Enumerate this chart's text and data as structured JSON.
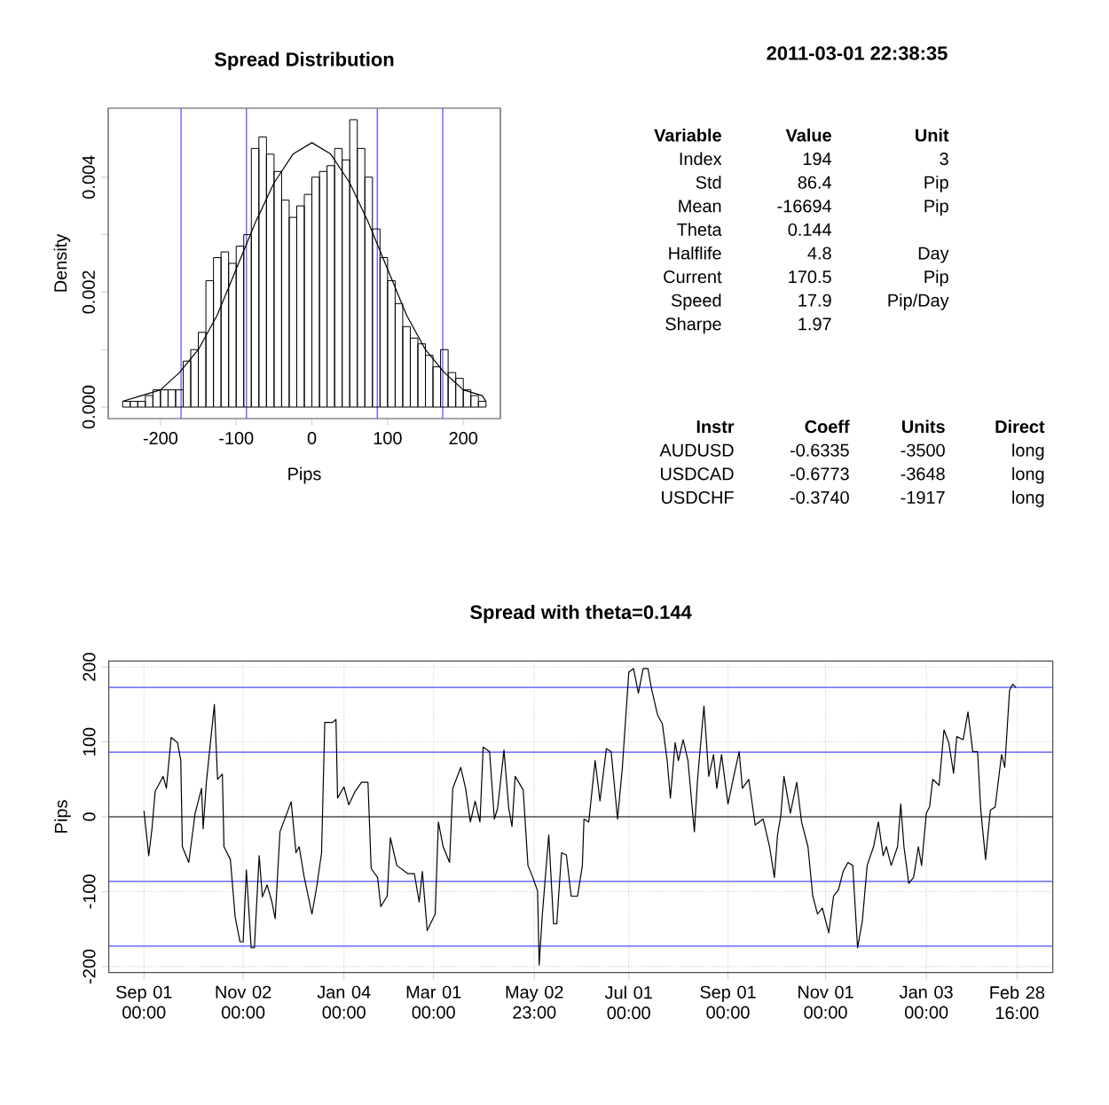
{
  "chart_data": [
    {
      "type": "histogram",
      "title": "Spread Distribution",
      "xlabel": "Pips",
      "ylabel": "Density",
      "series": [
        {
          "type": "histogram",
          "color": "#000000",
          "bins": [
            -250,
            -240,
            -230,
            -220,
            -210,
            -200,
            -190,
            -180,
            -170,
            -160,
            -150,
            -140,
            -130,
            -120,
            -110,
            -100,
            -90,
            -80,
            -70,
            -60,
            -50,
            -40,
            -30,
            -20,
            -10,
            0,
            10,
            20,
            30,
            40,
            50,
            60,
            70,
            80,
            90,
            100,
            110,
            120,
            130,
            140,
            150,
            160,
            170,
            180,
            190,
            200,
            210,
            220,
            230
          ],
          "values": [
            0.0001,
            0.0001,
            0.0001,
            0.0002,
            0.0003,
            0.0003,
            0.0003,
            0.0003,
            0.0008,
            0.001,
            0.0013,
            0.0022,
            0.0026,
            0.0027,
            0.0025,
            0.0028,
            0.003,
            0.0045,
            0.0047,
            0.0044,
            0.0041,
            0.0036,
            0.0033,
            0.0035,
            0.0037,
            0.004,
            0.0041,
            0.0042,
            0.0045,
            0.0043,
            0.005,
            0.0045,
            0.004,
            0.0031,
            0.0026,
            0.0022,
            0.0018,
            0.0014,
            0.0012,
            0.0011,
            0.0009,
            0.0007,
            0.001,
            0.0006,
            0.0005,
            0.0003,
            0.0002,
            0.0001
          ]
        },
        {
          "type": "line",
          "color": "#000000",
          "x": [
            -250,
            -225,
            -200,
            -175,
            -150,
            -125,
            -100,
            -75,
            -50,
            -25,
            0,
            25,
            50,
            75,
            100,
            125,
            150,
            175,
            200,
            225,
            230
          ],
          "values": [
            0.0001,
            0.0002,
            0.0003,
            0.0006,
            0.001,
            0.0016,
            0.0024,
            0.0032,
            0.0039,
            0.0044,
            0.0046,
            0.0044,
            0.0039,
            0.0032,
            0.0024,
            0.0016,
            0.001,
            0.0006,
            0.0003,
            0.0002,
            0.0001
          ]
        }
      ],
      "xlim": [
        -269,
        249
      ],
      "xticks": [
        -200,
        -100,
        0,
        100,
        200
      ],
      "ylim": [
        -0.0002,
        0.0052
      ],
      "yticks": [
        {
          "value": 0,
          "label": "0.000"
        },
        {
          "value": 0.001,
          "label": null
        },
        0.002,
        {
          "value": 0.003,
          "label": null
        },
        0.004
      ],
      "ref_lines": [
        {
          "axis": "x",
          "value": -172.8,
          "color": "#4d4dff"
        },
        {
          "axis": "x",
          "value": -86.4,
          "color": "#4d4dff"
        },
        {
          "axis": "x",
          "value": 86.4,
          "color": "#4d4dff"
        },
        {
          "axis": "x",
          "value": 172.8,
          "color": "#4d4dff"
        }
      ]
    },
    {
      "type": "other",
      "title": "2011-03-01 22:38:35",
      "annotations": [
        "Variable",
        "Value",
        "Unit",
        "Index",
        "194",
        "3",
        "Std",
        "86.4",
        "Pip",
        "Mean",
        "-16694",
        "Pip",
        "Theta",
        "0.144",
        "Halflife",
        "4.8",
        "Day",
        "Current",
        "170.5",
        "Pip",
        "Speed",
        "17.9",
        "Pip/Day",
        "Sharpe",
        "1.97",
        "Instr",
        "Coeff",
        "Units",
        "Direct",
        "AUDUSD",
        "-0.6335",
        "-3500",
        "long",
        "USDCAD",
        "-0.6773",
        "-3648",
        "long",
        "USDCHF",
        "-0.3740",
        "-1917",
        "long"
      ]
    },
    {
      "type": "line",
      "title": "Spread with theta=0.144",
      "ylabel": "Pips",
      "color": "#000000",
      "x": [
        "2009-09-01",
        "2009-09-04",
        "2009-09-06",
        "2009-09-08",
        "2009-09-13",
        "2009-09-15",
        "2009-09-18",
        "2009-09-22",
        "2009-09-24",
        "2009-09-25",
        "2009-09-29",
        "2009-10-03",
        "2009-10-07",
        "2009-10-08",
        "2009-10-10",
        "2009-10-15",
        "2009-10-17",
        "2009-10-20",
        "2009-10-21",
        "2009-10-25",
        "2009-10-28",
        "2009-10-31",
        "2009-11-02",
        "2009-11-04",
        "2009-11-07",
        "2009-11-09",
        "2009-11-12",
        "2009-11-14",
        "2009-11-17",
        "2009-11-20",
        "2009-11-22",
        "2009-11-25",
        "2009-12-02",
        "2009-12-05",
        "2009-12-07",
        "2009-12-10",
        "2009-12-15",
        "2009-12-18",
        "2009-12-21",
        "2009-12-23",
        "2009-12-28",
        "2009-12-30",
        "2009-12-31",
        "2010-01-04",
        "2010-01-07",
        "2010-01-11",
        "2010-01-15",
        "2010-01-19",
        "2010-01-21",
        "2010-01-25",
        "2010-01-27",
        "2010-01-31",
        "2010-02-02",
        "2010-02-06",
        "2010-02-13",
        "2010-02-17",
        "2010-02-20",
        "2010-02-22",
        "2010-02-25",
        "2010-03-02",
        "2010-03-04",
        "2010-03-07",
        "2010-03-11",
        "2010-03-13",
        "2010-03-18",
        "2010-03-21",
        "2010-03-24",
        "2010-03-27",
        "2010-03-30",
        "2010-04-01",
        "2010-04-05",
        "2010-04-08",
        "2010-04-10",
        "2010-04-14",
        "2010-04-17",
        "2010-04-19",
        "2010-04-21",
        "2010-04-26",
        "2010-04-29",
        "2010-05-02",
        "2010-05-05",
        "2010-05-06",
        "2010-05-08",
        "2010-05-12",
        "2010-05-15",
        "2010-05-17",
        "2010-05-20",
        "2010-05-23",
        "2010-05-26",
        "2010-05-30",
        "2010-06-02",
        "2010-06-03",
        "2010-06-06",
        "2010-06-10",
        "2010-06-13",
        "2010-06-17",
        "2010-06-20",
        "2010-06-24",
        "2010-06-27",
        "2010-07-01",
        "2010-07-04",
        "2010-07-07",
        "2010-07-10",
        "2010-07-13",
        "2010-07-15",
        "2010-07-19",
        "2010-07-22",
        "2010-07-25",
        "2010-07-27",
        "2010-07-30",
        "2010-08-01",
        "2010-08-04",
        "2010-08-07",
        "2010-08-11",
        "2010-08-13",
        "2010-08-17",
        "2010-08-20",
        "2010-08-23",
        "2010-08-25",
        "2010-08-28",
        "2010-09-01",
        "2010-09-05",
        "2010-09-08",
        "2010-09-10",
        "2010-09-14",
        "2010-09-18",
        "2010-09-23",
        "2010-09-27",
        "2010-09-30",
        "2010-10-02",
        "2010-10-04",
        "2010-10-06",
        "2010-10-10",
        "2010-10-14",
        "2010-10-17",
        "2010-10-21",
        "2010-10-24",
        "2010-10-27",
        "2010-10-30",
        "2010-11-03",
        "2010-11-06",
        "2010-11-09",
        "2010-11-12",
        "2010-11-15",
        "2010-11-18",
        "2010-11-21",
        "2010-11-24",
        "2010-11-27",
        "2010-12-01",
        "2010-12-04",
        "2010-12-07",
        "2010-12-09",
        "2010-12-12",
        "2010-12-16",
        "2010-12-18",
        "2010-12-20",
        "2010-12-23",
        "2010-12-26",
        "2010-12-29",
        "2010-12-31",
        "2011-01-03",
        "2011-01-05",
        "2011-01-07",
        "2011-01-11",
        "2011-01-14",
        "2011-01-17",
        "2011-01-20",
        "2011-01-22",
        "2011-01-26",
        "2011-01-29",
        "2011-02-01",
        "2011-02-04",
        "2011-02-06",
        "2011-02-09",
        "2011-02-12",
        "2011-02-15",
        "2011-02-19",
        "2011-02-21",
        "2011-02-24",
        "2011-02-26",
        "2011-02-28"
      ],
      "values": [
        8,
        -52,
        -16,
        34,
        54,
        38,
        106,
        99,
        75,
        -40,
        -61,
        5,
        38,
        -16,
        46,
        150,
        50,
        57,
        -40,
        -57,
        -134,
        -167,
        -167,
        -71,
        -175,
        -175,
        -52,
        -107,
        -91,
        -114,
        -136,
        -20,
        20,
        -48,
        -40,
        -79,
        -130,
        -93,
        -48,
        126,
        126,
        130,
        25,
        40,
        16,
        34,
        46,
        46,
        -69,
        -81,
        -120,
        -106,
        -28,
        -65,
        -76,
        -76,
        -114,
        -73,
        -152,
        -130,
        -7,
        -40,
        -61,
        38,
        66,
        38,
        -7,
        21,
        -7,
        93,
        87,
        -3,
        11,
        89,
        11,
        -13,
        54,
        36,
        -65,
        -81,
        -99,
        -198,
        -130,
        -24,
        -143,
        -143,
        -48,
        -51,
        -106,
        -106,
        -65,
        -3,
        -7,
        75,
        21,
        91,
        87,
        -3,
        66,
        193,
        198,
        165,
        198,
        198,
        173,
        136,
        124,
        75,
        25,
        99,
        75,
        103,
        75,
        -20,
        50,
        148,
        54,
        83,
        38,
        83,
        17,
        58,
        87,
        38,
        50,
        -11,
        -3,
        -40,
        -81,
        -24,
        1,
        54,
        5,
        46,
        -7,
        -40,
        -106,
        -130,
        -122,
        -155,
        -106,
        -98,
        -73,
        -61,
        -65,
        -175,
        -139,
        -65,
        -40,
        -7,
        -52,
        -40,
        -65,
        -40,
        17,
        -40,
        -89,
        -81,
        -40,
        -65,
        5,
        13,
        50,
        42,
        116,
        99,
        58,
        107,
        103,
        140,
        87,
        87,
        9,
        -57,
        9,
        13,
        83,
        66,
        169,
        177,
        173
      ],
      "xlim": [
        "2009-08-10",
        "2011-03-23"
      ],
      "xticks": [
        {
          "value": "2009-09-01",
          "label": "Sep 01 00:00"
        },
        {
          "value": "2009-11-02",
          "label": "Nov 02 00:00"
        },
        {
          "value": "2010-01-04",
          "label": "Jan 04 00:00"
        },
        {
          "value": "2010-03-01",
          "label": "Mar 01 00:00"
        },
        {
          "value": "2010-05-02T23:00",
          "label": "May 02 23:00"
        },
        {
          "value": "2010-07-01",
          "label": "Jul 01 00:00"
        },
        {
          "value": "2010-09-01",
          "label": "Sep 01 00:00"
        },
        {
          "value": "2010-11-01",
          "label": "Nov 01 00:00"
        },
        {
          "value": "2011-01-03",
          "label": "Jan 03 00:00"
        },
        {
          "value": "2011-02-28T16:00",
          "label": "Feb 28 16:00"
        }
      ],
      "ylim": [
        -208,
        208
      ],
      "yticks": [
        -200,
        -100,
        0,
        100,
        200
      ],
      "grid": true,
      "ref_lines": [
        {
          "axis": "y",
          "value": 172.8,
          "color": "#4d4dff"
        },
        {
          "axis": "y",
          "value": 86.4,
          "color": "#4d4dff"
        },
        {
          "axis": "y",
          "value": 0,
          "color": "#000000"
        },
        {
          "axis": "y",
          "value": -86.4,
          "color": "#4d4dff"
        },
        {
          "axis": "y",
          "value": -172.8,
          "color": "#4d4dff"
        }
      ]
    }
  ]
}
